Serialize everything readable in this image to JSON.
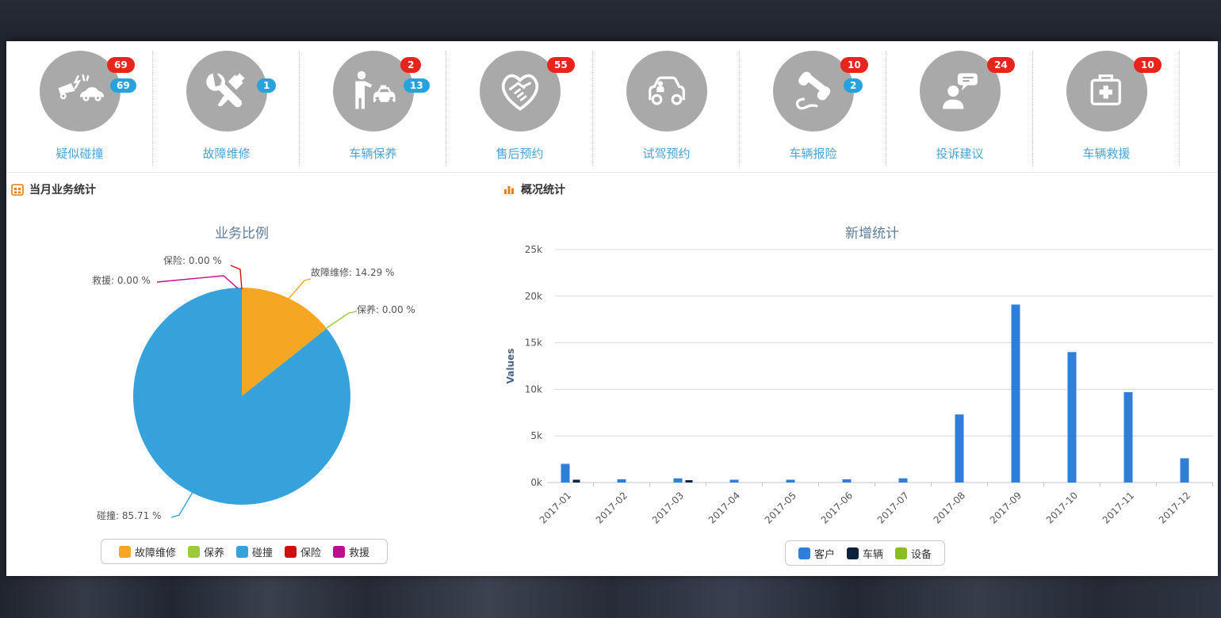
{
  "quick_actions": [
    {
      "label": "疑似碰撞",
      "icon": "car-crash-icon",
      "badge_red": "69",
      "badge_blue": "69"
    },
    {
      "label": "故障维修",
      "icon": "repair-tools-icon",
      "badge_red": null,
      "badge_blue": "1"
    },
    {
      "label": "车辆保养",
      "icon": "person-taxi-icon",
      "badge_red": "2",
      "badge_blue": "13"
    },
    {
      "label": "售后预约",
      "icon": "handshake-heart-icon",
      "badge_red": "55",
      "badge_blue": null
    },
    {
      "label": "试驾预约",
      "icon": "test-drive-car-icon",
      "badge_red": null,
      "badge_blue": null
    },
    {
      "label": "车辆报险",
      "icon": "telephone-icon",
      "badge_red": "10",
      "badge_blue": "2"
    },
    {
      "label": "投诉建议",
      "icon": "complaint-icon",
      "badge_red": "24",
      "badge_blue": null
    },
    {
      "label": "车辆救援",
      "icon": "first-aid-kit-icon",
      "badge_red": "10",
      "badge_blue": null
    }
  ],
  "sections": {
    "left": {
      "title": "当月业务统计"
    },
    "right": {
      "title": "概况统计"
    }
  },
  "colors": {
    "badge_red": "#e8251d",
    "badge_blue": "#28a2dc",
    "icon_circle_gray": "#a9a9a9",
    "icon_label_blue": "#4aa4d8",
    "header_icon_orange": "#e87e0e"
  },
  "chart_data": [
    {
      "type": "pie",
      "title": "业务比例",
      "series": [
        {
          "name": "故障维修",
          "value": 14.29,
          "color": "#F5A623",
          "label": "故障维修: 14.29 %"
        },
        {
          "name": "保养",
          "value": 0,
          "color": "#9BCB3B",
          "label": "保养: 0.00 %"
        },
        {
          "name": "碰撞",
          "value": 85.71,
          "color": "#36A2DB",
          "label": "碰撞: 85.71 %"
        },
        {
          "name": "保险",
          "value": 0,
          "color": "#CC1111",
          "label": "保险: 0.00 %"
        },
        {
          "name": "救援",
          "value": 0,
          "color": "#BF0D8E",
          "label": "救援: 0.00 %"
        }
      ],
      "legend": [
        "故障维修",
        "保养",
        "碰撞",
        "保险",
        "救援"
      ],
      "legend_position": "bottom"
    },
    {
      "type": "bar",
      "title": "新增统计",
      "ylabel": "Values",
      "ylim": [
        0,
        25000
      ],
      "ytick_labels": [
        "0k",
        "5k",
        "10k",
        "15k",
        "20k",
        "25k"
      ],
      "grid": true,
      "categories": [
        "2017-01",
        "2017-02",
        "2017-03",
        "2017-04",
        "2017-05",
        "2017-06",
        "2017-07",
        "2017-08",
        "2017-09",
        "2017-10",
        "2017-11",
        "2017-12"
      ],
      "series": [
        {
          "name": "客户",
          "color": "#2F7ED8",
          "values": [
            2000,
            350,
            450,
            300,
            300,
            350,
            450,
            7300,
            19100,
            14000,
            9700,
            2600
          ]
        },
        {
          "name": "车辆",
          "color": "#0D233A",
          "values": [
            300,
            0,
            250,
            0,
            0,
            0,
            0,
            0,
            0,
            0,
            0,
            0
          ]
        },
        {
          "name": "设备",
          "color": "#8BBC21",
          "values": [
            0,
            0,
            0,
            0,
            0,
            0,
            0,
            0,
            0,
            0,
            0,
            0
          ]
        }
      ],
      "legend_position": "bottom"
    }
  ]
}
